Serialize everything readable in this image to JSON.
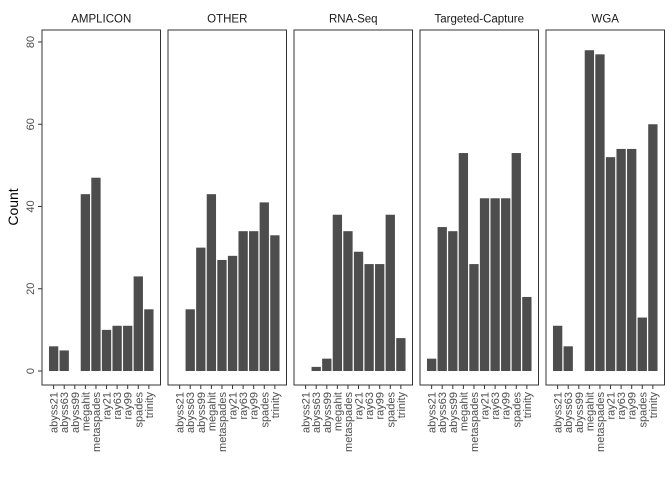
{
  "chart_data": {
    "type": "bar",
    "layout": "faceted",
    "ylabel": "Count",
    "xlabel": "",
    "ylim": [
      0,
      82
    ],
    "yticks": [
      0,
      20,
      40,
      60,
      80
    ],
    "bar_color": "#4d4d4d",
    "grid": false,
    "categories": [
      "abyss21",
      "abyss63",
      "abyss99",
      "megahit",
      "metaspades",
      "ray21",
      "ray63",
      "ray99",
      "spades",
      "trinity"
    ],
    "series": [
      {
        "name": "AMPLICON",
        "values": [
          6,
          5,
          0,
          43,
          47,
          10,
          11,
          11,
          23,
          15
        ]
      },
      {
        "name": "OTHER",
        "values": [
          0,
          15,
          30,
          43,
          27,
          28,
          34,
          34,
          41,
          33
        ]
      },
      {
        "name": "RNA-Seq",
        "values": [
          0,
          1,
          3,
          38,
          34,
          29,
          26,
          26,
          38,
          8
        ]
      },
      {
        "name": "Targeted-Capture",
        "values": [
          3,
          35,
          34,
          53,
          26,
          42,
          42,
          42,
          53,
          18
        ]
      },
      {
        "name": "WGA",
        "values": [
          11,
          6,
          0,
          78,
          77,
          52,
          54,
          54,
          13,
          60
        ]
      }
    ]
  }
}
